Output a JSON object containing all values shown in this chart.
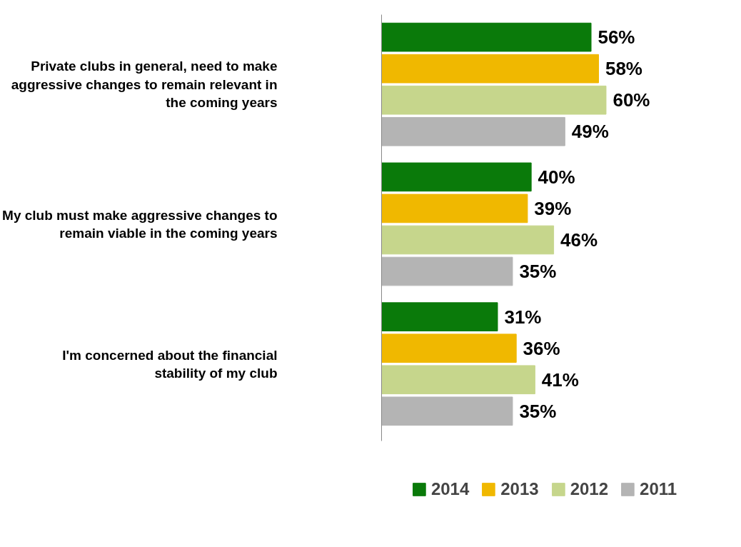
{
  "chart_data": {
    "type": "bar",
    "orientation": "horizontal",
    "legend": "bottom",
    "grid": false,
    "categories": [
      "Private clubs in general, need to make aggressive changes to remain relevant in the coming years",
      "My club must make aggressive changes to remain viable in the coming years",
      "I'm concerned about the financial stability of my club"
    ],
    "series": [
      {
        "name": "2014",
        "color": "#0a7a0a",
        "values": [
          56,
          40,
          31
        ],
        "value_labels": [
          "56%",
          "40%",
          "31%"
        ]
      },
      {
        "name": "2013",
        "color": "#f0b800",
        "values": [
          58,
          39,
          36
        ],
        "value_labels": [
          "58%",
          "39%",
          "36%"
        ]
      },
      {
        "name": "2012",
        "color": "#c6d68c",
        "values": [
          60,
          46,
          41
        ],
        "value_labels": [
          "60%",
          "46%",
          "41%"
        ]
      },
      {
        "name": "2011",
        "color": "#b4b4b4",
        "values": [
          49,
          35,
          35
        ],
        "value_labels": [
          "49%",
          "35%",
          "35%"
        ]
      }
    ]
  }
}
